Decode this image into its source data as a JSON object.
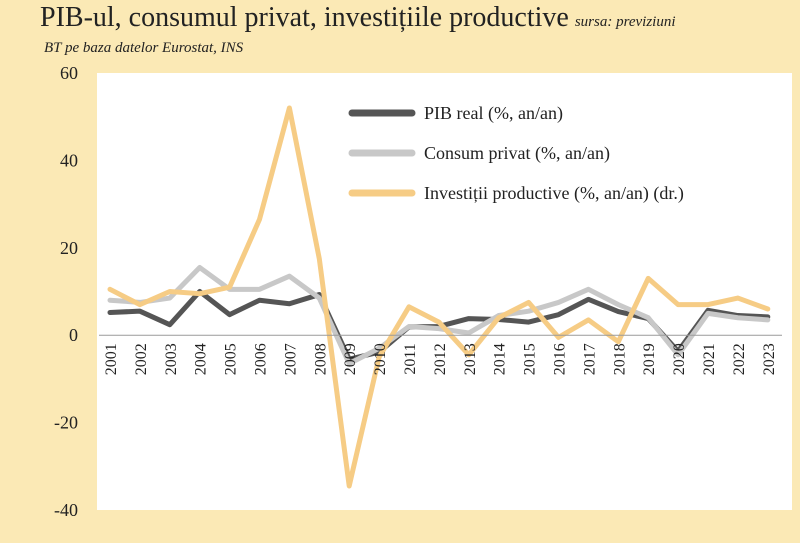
{
  "title": "PIB-ul, consumul privat, investițiile productive",
  "source_note": "sursa: previziuni",
  "subtitle": "BT pe baza datelor Eurostat, INS",
  "chart_data": {
    "type": "line",
    "categories": [
      "2001",
      "2002",
      "2003",
      "2004",
      "2005",
      "2006",
      "2007",
      "2008",
      "2009",
      "2010",
      "2011",
      "2012",
      "2013",
      "2014",
      "2015",
      "2016",
      "2017",
      "2018",
      "2019",
      "2020",
      "2021",
      "2022",
      "2023"
    ],
    "ylim": [
      -40,
      60
    ],
    "yticks": [
      -40,
      -20,
      0,
      20,
      40,
      60
    ],
    "legend_position": "top-center",
    "grid": false,
    "series": [
      {
        "name": "PIB real (%, an/an)",
        "color": "#555555",
        "values": [
          5.2,
          5.5,
          2.4,
          10.0,
          4.7,
          8.0,
          7.2,
          9.3,
          -5.5,
          -3.9,
          1.9,
          2.0,
          3.8,
          3.6,
          3.0,
          4.7,
          8.2,
          5.4,
          3.8,
          -3.7,
          5.7,
          4.5,
          4.2
        ]
      },
      {
        "name": "Consum privat (%, an/an)",
        "color": "#c8c8c8",
        "values": [
          8.0,
          7.5,
          8.5,
          15.5,
          10.5,
          10.5,
          13.5,
          8.5,
          -6.5,
          -3.0,
          2.0,
          1.5,
          0.5,
          4.5,
          5.5,
          7.5,
          10.5,
          7.0,
          4.0,
          -4.5,
          5.0,
          4.0,
          3.5
        ]
      },
      {
        "name": "Investiții productive (%, an/an) (dr.)",
        "color": "#f6cc85",
        "values": [
          10.5,
          7.0,
          10.0,
          9.5,
          11.0,
          26.5,
          52.0,
          17.5,
          -34.5,
          -5.0,
          6.5,
          3.0,
          -4.5,
          4.0,
          7.5,
          -0.5,
          3.5,
          -1.5,
          13.0,
          7.0,
          7.0,
          8.5,
          6.0
        ]
      }
    ]
  }
}
